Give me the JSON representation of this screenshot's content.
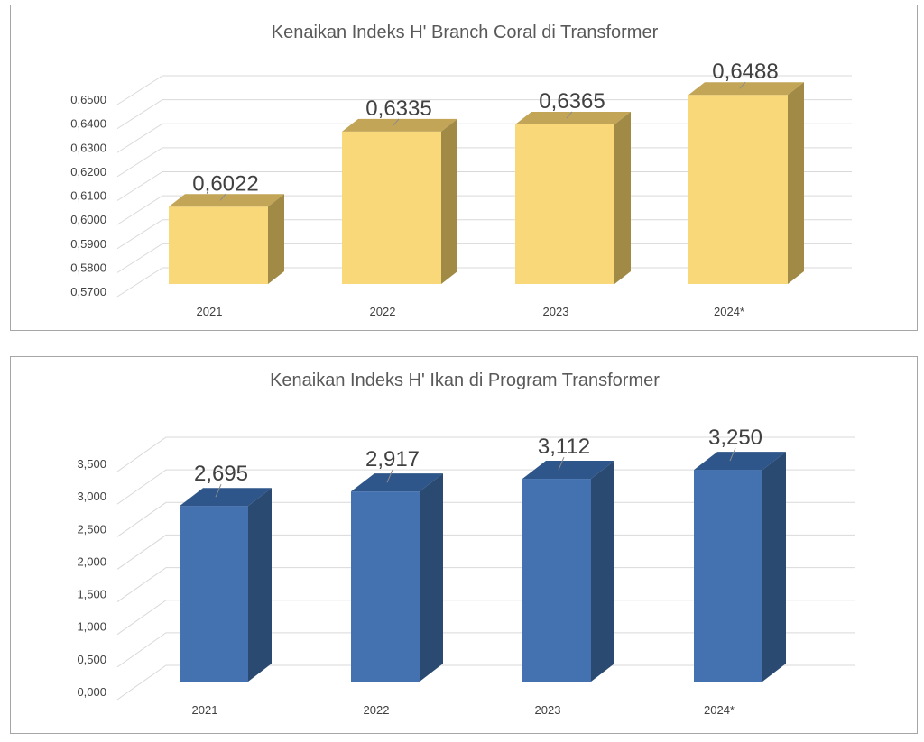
{
  "chart_data": [
    {
      "type": "bar",
      "title": "Kenaikan Indeks H' Branch Coral di Transformer",
      "categories": [
        "2021",
        "2022",
        "2023",
        "2024*"
      ],
      "values": [
        0.6022,
        0.6335,
        0.6365,
        0.6488
      ],
      "data_labels": [
        "0,6022",
        "0,6335",
        "0,6365",
        "0,6488"
      ],
      "ylim": [
        0.57,
        0.65
      ],
      "yticks": [
        0.57,
        0.58,
        0.59,
        0.6,
        0.61,
        0.62,
        0.63,
        0.64,
        0.65
      ],
      "ytick_labels": [
        "0,5700",
        "0,5800",
        "0,5900",
        "0,6000",
        "0,6100",
        "0,6200",
        "0,6300",
        "0,6400",
        "0,6500"
      ],
      "grid": true,
      "legend": "none",
      "style": "3d",
      "colors": {
        "front": "#f8d878",
        "top": "#c2a556",
        "side": "#a08a46"
      }
    },
    {
      "type": "bar",
      "title": "Kenaikan Indeks H' Ikan di Program Transformer",
      "categories": [
        "2021",
        "2022",
        "2023",
        "2024*"
      ],
      "values": [
        2.695,
        2.917,
        3.112,
        3.25
      ],
      "data_labels": [
        "2,695",
        "2,917",
        "3,112",
        "3,250"
      ],
      "ylim": [
        0,
        3.5
      ],
      "yticks": [
        0,
        0.5,
        1.0,
        1.5,
        2.0,
        2.5,
        3.0,
        3.5
      ],
      "ytick_labels": [
        "0,000",
        "0,500",
        "1,000",
        "1,500",
        "2,000",
        "2,500",
        "3,000",
        "3,500"
      ],
      "grid": true,
      "legend": "none",
      "style": "3d",
      "colors": {
        "front": "#4472b0",
        "top": "#2f568a",
        "side": "#2a4a72"
      }
    }
  ]
}
